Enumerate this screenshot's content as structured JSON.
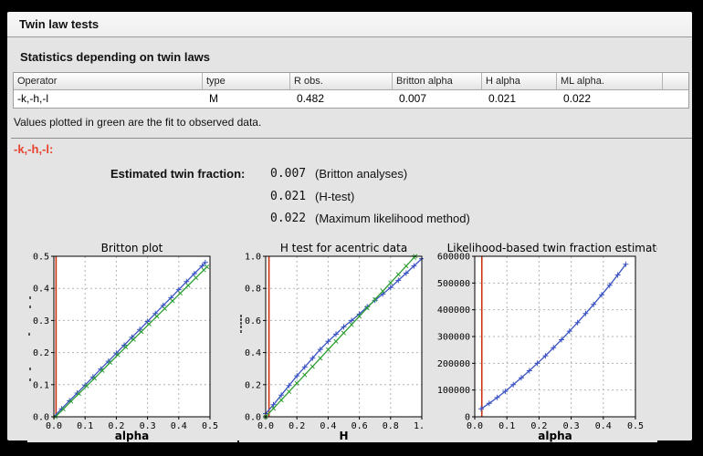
{
  "window": {
    "title": "Twin law tests"
  },
  "section": {
    "heading": "Statistics depending on twin laws"
  },
  "table": {
    "headers": [
      "Operator",
      "type",
      "R obs.",
      "Britton alpha",
      "H alpha",
      "ML alpha.",
      ""
    ],
    "rows": [
      {
        "operator": "-k,-h,-l",
        "type": "M",
        "r_obs": "0.482",
        "britton_alpha": "0.007",
        "h_alpha": "0.021",
        "ml_alpha": "0.022"
      }
    ]
  },
  "notes": {
    "green_note": "Values plotted in green are the fit to observed data."
  },
  "operator_heading": "-k,-h,-l:",
  "estimates": {
    "label": "Estimated twin fraction:",
    "rows": [
      {
        "value": "0.007",
        "method": "(Britton analyses)"
      },
      {
        "value": "0.021",
        "method": "(H-test)"
      },
      {
        "value": "0.022",
        "method": "(Maximum likelihood method)"
      }
    ]
  },
  "colors": {
    "accent_heading": "#e8432f",
    "observed_line": "#3a52c4",
    "fit_line": "#2e9e32",
    "estimate_marker_line": "#cc3311",
    "grid": "#b3b3b3"
  },
  "chart_data": [
    {
      "type": "line",
      "title": "Britton plot",
      "xlabel": "alpha",
      "ylabel": "",
      "xlim": [
        0,
        0.5
      ],
      "ylim": [
        0,
        0.5
      ],
      "grid": true,
      "xticks": {
        "values": [
          0,
          0.1,
          0.2,
          0.3,
          0.4,
          0.5
        ],
        "labels": [
          "0.0",
          "0.1",
          "0.2",
          "0.3",
          "0.4",
          "0.5"
        ]
      },
      "yticks": {
        "values": [
          0,
          0.1,
          0.2,
          0.3,
          0.4,
          0.5
        ],
        "labels": [
          "0.0",
          "0.1",
          "0.2",
          "0.3",
          "0.4",
          "0.5"
        ]
      },
      "vline": {
        "x": 0.007,
        "color": "#cc3311"
      },
      "series": [
        {
          "name": "observed",
          "color": "#3a52c4",
          "marker": "plus",
          "x": [
            0,
            0.025,
            0.05,
            0.075,
            0.1,
            0.125,
            0.15,
            0.175,
            0.2,
            0.225,
            0.25,
            0.275,
            0.3,
            0.325,
            0.35,
            0.375,
            0.4,
            0.425,
            0.45,
            0.475,
            0.485
          ],
          "y": [
            0,
            0.025,
            0.05,
            0.074,
            0.099,
            0.124,
            0.149,
            0.173,
            0.198,
            0.223,
            0.248,
            0.272,
            0.297,
            0.322,
            0.347,
            0.371,
            0.396,
            0.421,
            0.446,
            0.47,
            0.481
          ]
        },
        {
          "name": "fit",
          "color": "#2e9e32",
          "marker": "x",
          "x": [
            0.005,
            0.03,
            0.055,
            0.08,
            0.105,
            0.13,
            0.155,
            0.18,
            0.205,
            0.23,
            0.255,
            0.28,
            0.305,
            0.33,
            0.355,
            0.38,
            0.405,
            0.43,
            0.455,
            0.48,
            0.49
          ],
          "y": [
            0,
            0.024,
            0.048,
            0.072,
            0.096,
            0.12,
            0.144,
            0.169,
            0.193,
            0.217,
            0.241,
            0.265,
            0.289,
            0.313,
            0.337,
            0.361,
            0.385,
            0.409,
            0.433,
            0.457,
            0.467
          ]
        }
      ]
    },
    {
      "type": "line",
      "title": "H test for acentric data",
      "xlabel": "H",
      "ylabel": "",
      "xlim": [
        0,
        1.0
      ],
      "ylim": [
        0,
        1.0
      ],
      "grid": true,
      "xticks": {
        "values": [
          0,
          0.2,
          0.4,
          0.6,
          0.8,
          1.0
        ],
        "labels": [
          "0.0",
          "0.2",
          "0.4",
          "0.6",
          "0.8",
          "1.0"
        ]
      },
      "yticks": {
        "values": [
          0,
          0.2,
          0.4,
          0.6,
          0.8,
          1.0
        ],
        "labels": [
          "0.0",
          "0.2",
          "0.4",
          "0.6",
          "0.8",
          "1.0"
        ]
      },
      "vline": {
        "x": 0.021,
        "color": "#cc3311"
      },
      "series": [
        {
          "name": "observed",
          "color": "#3a52c4",
          "marker": "plus",
          "x": [
            0,
            0.05,
            0.1,
            0.15,
            0.2,
            0.25,
            0.3,
            0.35,
            0.4,
            0.45,
            0.5,
            0.55,
            0.6,
            0.65,
            0.7,
            0.75,
            0.8,
            0.85,
            0.9,
            0.95,
            1.0
          ],
          "y": [
            0.02,
            0.075,
            0.135,
            0.195,
            0.255,
            0.31,
            0.365,
            0.42,
            0.47,
            0.515,
            0.56,
            0.6,
            0.64,
            0.685,
            0.725,
            0.765,
            0.805,
            0.85,
            0.895,
            0.94,
            0.985
          ]
        },
        {
          "name": "fit",
          "color": "#2e9e32",
          "marker": "x",
          "x": [
            0,
            0.05,
            0.1,
            0.15,
            0.2,
            0.25,
            0.3,
            0.35,
            0.4,
            0.45,
            0.5,
            0.55,
            0.6,
            0.65,
            0.7,
            0.75,
            0.8,
            0.85,
            0.9,
            0.95,
            0.958
          ],
          "y": [
            0,
            0.052,
            0.104,
            0.157,
            0.209,
            0.261,
            0.313,
            0.365,
            0.418,
            0.47,
            0.522,
            0.574,
            0.626,
            0.678,
            0.731,
            0.783,
            0.835,
            0.887,
            0.939,
            0.992,
            1.0
          ]
        }
      ]
    },
    {
      "type": "line",
      "title": "Likelihood-based twin fraction estimate",
      "xlabel": "alpha",
      "ylabel": "",
      "xlim": [
        0,
        0.5
      ],
      "ylim": [
        0,
        600000
      ],
      "grid": true,
      "xticks": {
        "values": [
          0,
          0.1,
          0.2,
          0.3,
          0.4,
          0.5
        ],
        "labels": [
          "0.0",
          "0.1",
          "0.2",
          "0.3",
          "0.4",
          "0.5"
        ]
      },
      "yticks": {
        "values": [
          0,
          100000,
          200000,
          300000,
          400000,
          500000,
          600000
        ],
        "labels": [
          "0",
          "100000",
          "200000",
          "300000",
          "400000",
          "500000",
          "600000"
        ]
      },
      "vline": {
        "x": 0.022,
        "color": "#cc3311"
      },
      "series": [
        {
          "name": "likelihood",
          "color": "#3a52c4",
          "marker": "plus",
          "x": [
            0.02,
            0.045,
            0.07,
            0.095,
            0.12,
            0.145,
            0.17,
            0.195,
            0.22,
            0.245,
            0.27,
            0.295,
            0.32,
            0.345,
            0.37,
            0.395,
            0.42,
            0.445,
            0.47
          ],
          "y": [
            30000,
            50000,
            72000,
            95000,
            120000,
            146000,
            172000,
            200000,
            228000,
            258000,
            288000,
            320000,
            352000,
            386000,
            420000,
            456000,
            492000,
            530000,
            570000
          ]
        }
      ]
    }
  ]
}
